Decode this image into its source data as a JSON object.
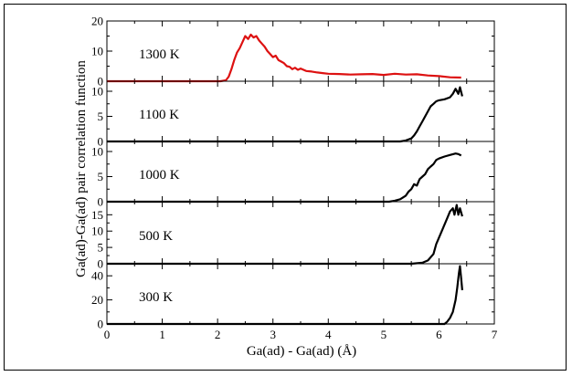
{
  "chart_data": {
    "type": "line",
    "xlabel": "Ga(ad) - Ga(ad)  (Å)",
    "ylabel": "Ga(ad)-Ga(ad) pair correlation function",
    "xlim": [
      0,
      7
    ],
    "xticks": [
      0,
      1,
      2,
      3,
      4,
      5,
      6,
      7
    ],
    "panels": [
      {
        "name": "1300 K",
        "color": "#dd1111",
        "ylim": [
          0,
          20
        ],
        "yticks": [
          0,
          10,
          20
        ],
        "points": [
          [
            0,
            0
          ],
          [
            2.05,
            0
          ],
          [
            2.15,
            0.3
          ],
          [
            2.2,
            1.5
          ],
          [
            2.25,
            4
          ],
          [
            2.3,
            7
          ],
          [
            2.35,
            9.5
          ],
          [
            2.4,
            11
          ],
          [
            2.45,
            13
          ],
          [
            2.5,
            15
          ],
          [
            2.55,
            14
          ],
          [
            2.6,
            15.5
          ],
          [
            2.65,
            14.5
          ],
          [
            2.7,
            15
          ],
          [
            2.75,
            13.5
          ],
          [
            2.8,
            12.5
          ],
          [
            2.85,
            11.5
          ],
          [
            2.9,
            10
          ],
          [
            2.95,
            9
          ],
          [
            3.0,
            8
          ],
          [
            3.05,
            8.5
          ],
          [
            3.1,
            7
          ],
          [
            3.15,
            6.5
          ],
          [
            3.2,
            6
          ],
          [
            3.25,
            5
          ],
          [
            3.3,
            4.8
          ],
          [
            3.35,
            4
          ],
          [
            3.4,
            4.5
          ],
          [
            3.45,
            3.8
          ],
          [
            3.5,
            4.2
          ],
          [
            3.6,
            3.4
          ],
          [
            3.7,
            3.2
          ],
          [
            3.8,
            2.9
          ],
          [
            3.9,
            2.7
          ],
          [
            4.0,
            2.5
          ],
          [
            4.2,
            2.4
          ],
          [
            4.4,
            2.2
          ],
          [
            4.6,
            2.3
          ],
          [
            4.8,
            2.4
          ],
          [
            5.0,
            2.1
          ],
          [
            5.2,
            2.5
          ],
          [
            5.4,
            2.2
          ],
          [
            5.6,
            2.3
          ],
          [
            5.8,
            1.9
          ],
          [
            6.0,
            1.7
          ],
          [
            6.2,
            1.3
          ],
          [
            6.4,
            1.2
          ]
        ]
      },
      {
        "name": "1100 K",
        "color": "#000000",
        "ylim": [
          0,
          12
        ],
        "yticks": [
          0,
          5,
          10
        ],
        "points": [
          [
            0,
            0
          ],
          [
            5.3,
            0
          ],
          [
            5.4,
            0.2
          ],
          [
            5.5,
            0.6
          ],
          [
            5.55,
            1.2
          ],
          [
            5.6,
            2
          ],
          [
            5.65,
            3
          ],
          [
            5.7,
            4
          ],
          [
            5.75,
            5
          ],
          [
            5.8,
            6
          ],
          [
            5.85,
            7
          ],
          [
            5.9,
            7.5
          ],
          [
            5.95,
            8
          ],
          [
            6.0,
            8.2
          ],
          [
            6.1,
            8.4
          ],
          [
            6.2,
            8.8
          ],
          [
            6.25,
            9.5
          ],
          [
            6.3,
            10.5
          ],
          [
            6.35,
            9.5
          ],
          [
            6.38,
            10.8
          ],
          [
            6.42,
            9
          ]
        ]
      },
      {
        "name": "1000 K",
        "color": "#000000",
        "ylim": [
          0,
          12
        ],
        "yticks": [
          0,
          5,
          10
        ],
        "points": [
          [
            0,
            0
          ],
          [
            5.1,
            0
          ],
          [
            5.2,
            0.2
          ],
          [
            5.3,
            0.5
          ],
          [
            5.4,
            1.2
          ],
          [
            5.45,
            2
          ],
          [
            5.5,
            2.5
          ],
          [
            5.55,
            3.5
          ],
          [
            5.6,
            3.2
          ],
          [
            5.65,
            4.5
          ],
          [
            5.7,
            5
          ],
          [
            5.75,
            5.5
          ],
          [
            5.8,
            6.5
          ],
          [
            5.85,
            7
          ],
          [
            5.9,
            7.5
          ],
          [
            5.95,
            8.3
          ],
          [
            6.0,
            8.6
          ],
          [
            6.1,
            9
          ],
          [
            6.2,
            9.3
          ],
          [
            6.3,
            9.6
          ],
          [
            6.35,
            9.5
          ],
          [
            6.4,
            9.2
          ]
        ]
      },
      {
        "name": "500 K",
        "color": "#000000",
        "ylim": [
          0,
          19
        ],
        "yticks": [
          0,
          5,
          10,
          15
        ],
        "points": [
          [
            0,
            0
          ],
          [
            5.5,
            0
          ],
          [
            5.7,
            0.3
          ],
          [
            5.8,
            1
          ],
          [
            5.9,
            3
          ],
          [
            5.95,
            6
          ],
          [
            6.0,
            8
          ],
          [
            6.05,
            10
          ],
          [
            6.1,
            12
          ],
          [
            6.15,
            14
          ],
          [
            6.2,
            16
          ],
          [
            6.25,
            17
          ],
          [
            6.28,
            15
          ],
          [
            6.32,
            18
          ],
          [
            6.35,
            15
          ],
          [
            6.38,
            17
          ],
          [
            6.42,
            14.5
          ]
        ]
      },
      {
        "name": "300 K",
        "color": "#000000",
        "ylim": [
          0,
          50
        ],
        "yticks": [
          0,
          20,
          40
        ],
        "points": [
          [
            0,
            0
          ],
          [
            6.1,
            0
          ],
          [
            6.15,
            2
          ],
          [
            6.2,
            5
          ],
          [
            6.25,
            10
          ],
          [
            6.3,
            20
          ],
          [
            6.33,
            30
          ],
          [
            6.36,
            42
          ],
          [
            6.38,
            48
          ],
          [
            6.4,
            38
          ],
          [
            6.42,
            28
          ]
        ]
      }
    ]
  }
}
